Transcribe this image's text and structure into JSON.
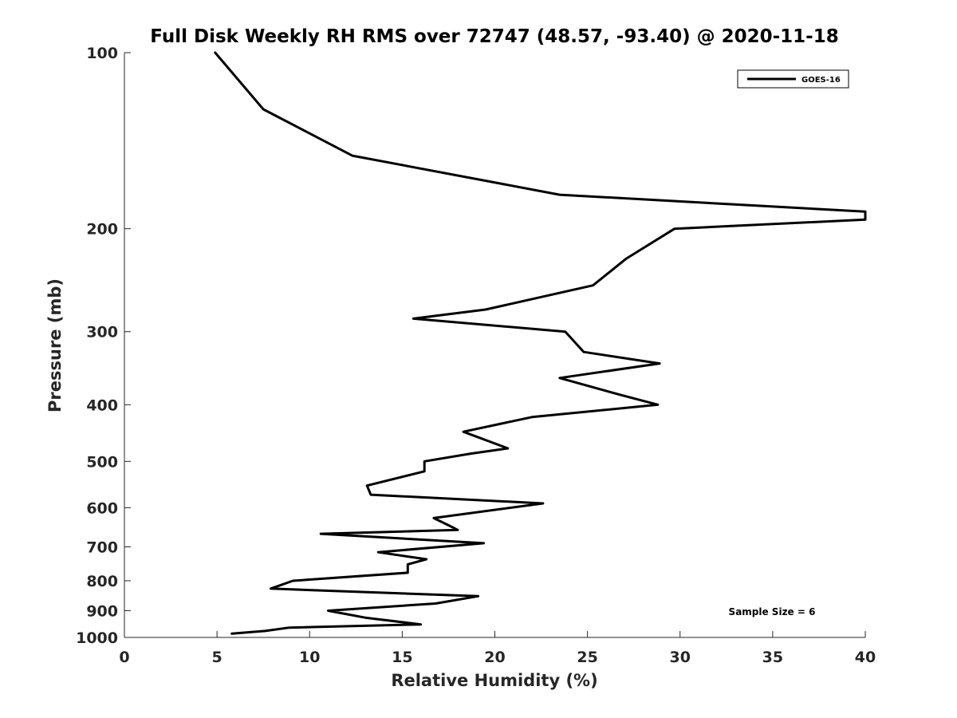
{
  "chart_data": {
    "type": "line",
    "title": "Full Disk Weekly RH RMS over 72747 (48.57, -93.40) @ 2020-11-18",
    "xlabel": "Relative Humidity (%)",
    "ylabel": "Pressure (mb)",
    "xlim": [
      0,
      40
    ],
    "ylim": [
      100,
      1000
    ],
    "y_scale": "log",
    "y_reversed": true,
    "x_ticks": [
      0,
      5,
      10,
      15,
      20,
      25,
      30,
      35,
      40
    ],
    "y_ticks": [
      100,
      200,
      300,
      400,
      500,
      600,
      700,
      800,
      900,
      1000
    ],
    "grid": false,
    "legend_position": "top-right",
    "annotation": "Sample Size = 6",
    "series": [
      {
        "name": "GOES-16",
        "color": "#000000",
        "points": [
          [
            4.9,
            100
          ],
          [
            7.5,
            125
          ],
          [
            12.3,
            150
          ],
          [
            23.5,
            175
          ],
          [
            40.0,
            187
          ],
          [
            40.0,
            193
          ],
          [
            29.7,
            200
          ],
          [
            27.1,
            225
          ],
          [
            25.3,
            250
          ],
          [
            19.5,
            275
          ],
          [
            15.6,
            285
          ],
          [
            23.8,
            300
          ],
          [
            24.8,
            325
          ],
          [
            28.9,
            340
          ],
          [
            23.5,
            360
          ],
          [
            26.8,
            385
          ],
          [
            28.8,
            400
          ],
          [
            22.0,
            420
          ],
          [
            18.3,
            445
          ],
          [
            20.7,
            475
          ],
          [
            18.7,
            485
          ],
          [
            16.2,
            500
          ],
          [
            16.2,
            520
          ],
          [
            13.1,
            550
          ],
          [
            13.3,
            570
          ],
          [
            22.6,
            590
          ],
          [
            16.7,
            625
          ],
          [
            17.8,
            650
          ],
          [
            18.0,
            655
          ],
          [
            10.6,
            665
          ],
          [
            19.4,
            690
          ],
          [
            13.7,
            715
          ],
          [
            16.3,
            735
          ],
          [
            15.3,
            750
          ],
          [
            15.3,
            775
          ],
          [
            9.1,
            800
          ],
          [
            7.9,
            825
          ],
          [
            19.1,
            850
          ],
          [
            16.8,
            875
          ],
          [
            11.0,
            900
          ],
          [
            13.0,
            925
          ],
          [
            16.0,
            950
          ],
          [
            8.9,
            962
          ],
          [
            7.6,
            975
          ],
          [
            5.8,
            985
          ]
        ]
      }
    ]
  }
}
